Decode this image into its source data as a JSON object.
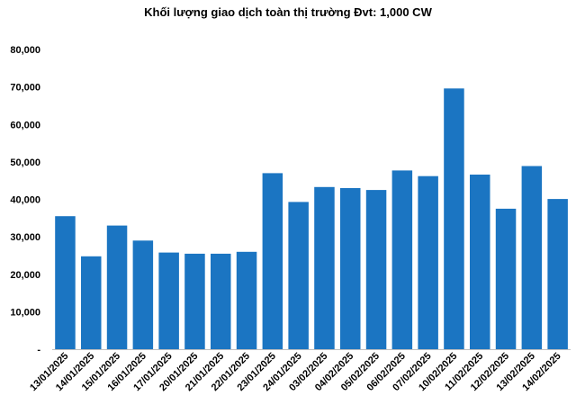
{
  "chart_data": {
    "type": "bar",
    "title": "Khối lượng giao dịch toàn thị trường Đvt: 1,000 CW",
    "categories": [
      "13/01/2025",
      "14/01/2025",
      "15/01/2025",
      "16/01/2025",
      "17/01/2025",
      "20/01/2025",
      "21/01/2025",
      "22/01/2025",
      "23/01/2025",
      "24/01/2025",
      "03/02/2025",
      "04/02/2025",
      "05/02/2025",
      "06/02/2025",
      "07/02/2025",
      "10/02/2025",
      "11/02/2025",
      "12/02/2025",
      "13/02/2025",
      "14/02/2025"
    ],
    "values": [
      35500,
      24800,
      33000,
      29000,
      25800,
      25500,
      25500,
      26000,
      47000,
      39300,
      43300,
      43000,
      42500,
      47700,
      46200,
      69600,
      46600,
      37500,
      48900,
      40100
    ],
    "ylim": [
      0,
      80000
    ],
    "yticks": [
      0,
      10000,
      20000,
      30000,
      40000,
      50000,
      60000,
      70000,
      80000
    ],
    "ytick_labels": [
      "-",
      "10,000",
      "20,000",
      "30,000",
      "40,000",
      "50,000",
      "60,000",
      "70,000",
      "80,000"
    ],
    "xlabel": "",
    "ylabel": "",
    "grid": false,
    "legend": "none",
    "bar_color": "#1B75C2"
  }
}
